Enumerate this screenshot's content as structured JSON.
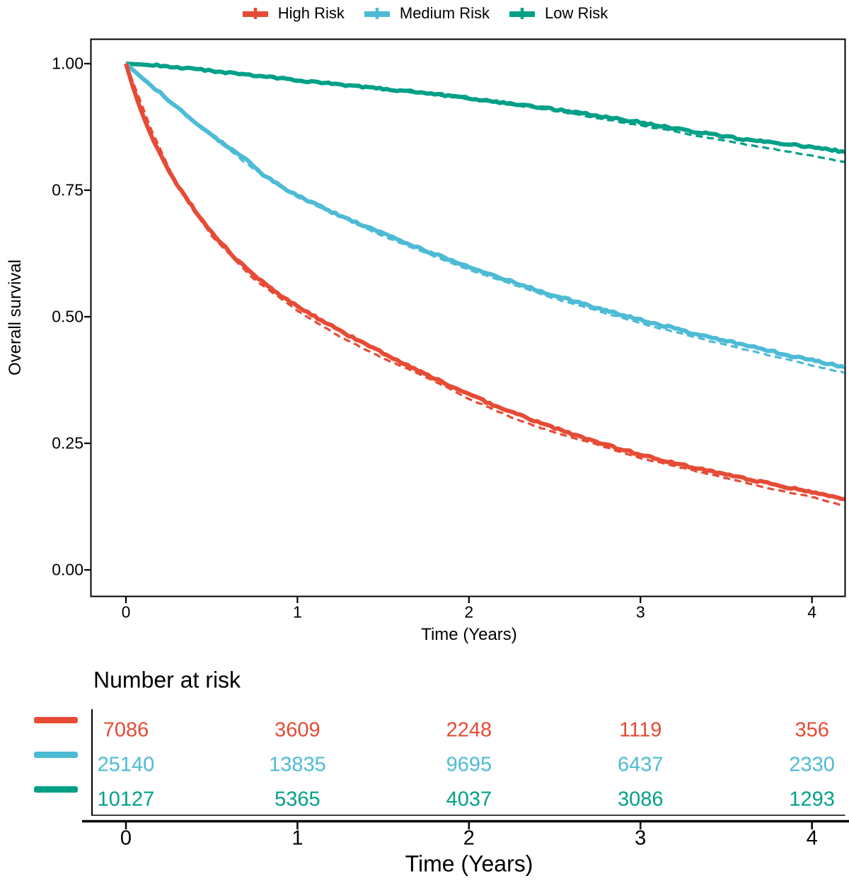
{
  "legend": {
    "position": "top",
    "items": [
      {
        "label": "High Risk",
        "color": "#E64B35"
      },
      {
        "label": "Medium Risk",
        "color": "#4DBBD5"
      },
      {
        "label": "Low Risk",
        "color": "#00A087"
      }
    ]
  },
  "chart_data": {
    "type": "line",
    "subtype": "kaplan-meier-survival",
    "title": "",
    "xlabel": "Time (Years)",
    "ylabel": "Overall survival",
    "xlim": [
      0,
      4.19
    ],
    "ylim": [
      0,
      1.0
    ],
    "grid": false,
    "legend_position": "top",
    "x_ticks": [
      {
        "value": 0,
        "label": "0"
      },
      {
        "value": 1,
        "label": "1"
      },
      {
        "value": 2,
        "label": "2"
      },
      {
        "value": 3,
        "label": "3"
      },
      {
        "value": 4,
        "label": "4"
      }
    ],
    "y_ticks": [
      {
        "value": 1.0,
        "label": "1.00"
      },
      {
        "value": 0.75,
        "label": "0.75"
      },
      {
        "value": 0.5,
        "label": "0.50"
      },
      {
        "value": 0.25,
        "label": "0.25"
      },
      {
        "value": 0.0,
        "label": "0.00"
      }
    ],
    "series": [
      {
        "name": "Low Risk",
        "color": "#00A087",
        "line": "dashed",
        "points": [
          [
            0,
            1.0
          ],
          [
            0.5,
            0.986
          ],
          [
            1.0,
            0.966
          ],
          [
            1.5,
            0.95
          ],
          [
            2.0,
            0.93
          ],
          [
            2.5,
            0.907
          ],
          [
            3.0,
            0.878
          ],
          [
            3.2,
            0.866
          ],
          [
            3.4,
            0.853
          ],
          [
            3.6,
            0.841
          ],
          [
            3.8,
            0.83
          ],
          [
            4.0,
            0.818
          ],
          [
            4.19,
            0.806
          ]
        ]
      },
      {
        "name": "Low Risk",
        "color": "#00A087",
        "line": "solid",
        "points": [
          [
            0,
            1.0
          ],
          [
            0.1,
            0.998
          ],
          [
            0.2,
            0.996
          ],
          [
            0.3,
            0.993
          ],
          [
            0.4,
            0.989
          ],
          [
            0.5,
            0.986
          ],
          [
            0.6,
            0.982
          ],
          [
            0.7,
            0.979
          ],
          [
            0.8,
            0.975
          ],
          [
            0.9,
            0.971
          ],
          [
            1.0,
            0.967
          ],
          [
            1.2,
            0.96
          ],
          [
            1.4,
            0.954
          ],
          [
            1.6,
            0.947
          ],
          [
            1.8,
            0.94
          ],
          [
            2.0,
            0.932
          ],
          [
            2.2,
            0.923
          ],
          [
            2.4,
            0.914
          ],
          [
            2.6,
            0.905
          ],
          [
            2.8,
            0.895
          ],
          [
            3.0,
            0.884
          ],
          [
            3.2,
            0.872
          ],
          [
            3.4,
            0.861
          ],
          [
            3.6,
            0.851
          ],
          [
            3.8,
            0.843
          ],
          [
            4.0,
            0.835
          ],
          [
            4.1,
            0.83
          ],
          [
            4.19,
            0.826
          ]
        ]
      },
      {
        "name": "Medium Risk",
        "color": "#4DBBD5",
        "line": "dashed",
        "points": [
          [
            0,
            1.0
          ],
          [
            0.25,
            0.925
          ],
          [
            0.5,
            0.857
          ],
          [
            0.75,
            0.79
          ],
          [
            1.0,
            0.736
          ],
          [
            1.5,
            0.659
          ],
          [
            2.0,
            0.593
          ],
          [
            2.5,
            0.536
          ],
          [
            3.0,
            0.487
          ],
          [
            3.5,
            0.444
          ],
          [
            4.0,
            0.404
          ],
          [
            4.19,
            0.389
          ]
        ]
      },
      {
        "name": "Medium Risk",
        "color": "#4DBBD5",
        "line": "solid",
        "points": [
          [
            0,
            1.0
          ],
          [
            0.05,
            0.985
          ],
          [
            0.1,
            0.97
          ],
          [
            0.15,
            0.956
          ],
          [
            0.2,
            0.942
          ],
          [
            0.25,
            0.928
          ],
          [
            0.3,
            0.914
          ],
          [
            0.35,
            0.9
          ],
          [
            0.4,
            0.886
          ],
          [
            0.45,
            0.872
          ],
          [
            0.5,
            0.858
          ],
          [
            0.6,
            0.835
          ],
          [
            0.7,
            0.812
          ],
          [
            0.8,
            0.781
          ],
          [
            0.9,
            0.758
          ],
          [
            1.0,
            0.74
          ],
          [
            1.1,
            0.723
          ],
          [
            1.2,
            0.707
          ],
          [
            1.3,
            0.692
          ],
          [
            1.4,
            0.678
          ],
          [
            1.5,
            0.664
          ],
          [
            1.6,
            0.65
          ],
          [
            1.7,
            0.637
          ],
          [
            1.8,
            0.624
          ],
          [
            1.9,
            0.611
          ],
          [
            2.0,
            0.599
          ],
          [
            2.1,
            0.587
          ],
          [
            2.2,
            0.575
          ],
          [
            2.3,
            0.564
          ],
          [
            2.4,
            0.553
          ],
          [
            2.5,
            0.542
          ],
          [
            2.6,
            0.532
          ],
          [
            2.7,
            0.522
          ],
          [
            2.8,
            0.512
          ],
          [
            2.9,
            0.503
          ],
          [
            3.0,
            0.494
          ],
          [
            3.1,
            0.485
          ],
          [
            3.2,
            0.477
          ],
          [
            3.3,
            0.468
          ],
          [
            3.4,
            0.46
          ],
          [
            3.5,
            0.452
          ],
          [
            3.6,
            0.445
          ],
          [
            3.7,
            0.437
          ],
          [
            3.8,
            0.429
          ],
          [
            3.9,
            0.421
          ],
          [
            4.0,
            0.414
          ],
          [
            4.1,
            0.407
          ],
          [
            4.19,
            0.401
          ]
        ]
      },
      {
        "name": "High Risk",
        "color": "#E64B35",
        "line": "dashed",
        "points": [
          [
            0,
            1.0
          ],
          [
            0.15,
            0.868
          ],
          [
            0.3,
            0.757
          ],
          [
            0.5,
            0.66
          ],
          [
            0.75,
            0.573
          ],
          [
            1.0,
            0.512
          ],
          [
            1.25,
            0.46
          ],
          [
            1.5,
            0.418
          ],
          [
            1.75,
            0.381
          ],
          [
            2.0,
            0.338
          ],
          [
            2.25,
            0.301
          ],
          [
            2.5,
            0.271
          ],
          [
            2.75,
            0.247
          ],
          [
            3.0,
            0.221
          ],
          [
            3.25,
            0.201
          ],
          [
            3.5,
            0.181
          ],
          [
            3.75,
            0.161
          ],
          [
            4.0,
            0.144
          ],
          [
            4.19,
            0.126
          ]
        ]
      },
      {
        "name": "High Risk",
        "color": "#E64B35",
        "line": "solid",
        "points": [
          [
            0,
            1.0
          ],
          [
            0.04,
            0.955
          ],
          [
            0.08,
            0.915
          ],
          [
            0.12,
            0.88
          ],
          [
            0.16,
            0.849
          ],
          [
            0.2,
            0.82
          ],
          [
            0.25,
            0.789
          ],
          [
            0.3,
            0.761
          ],
          [
            0.35,
            0.735
          ],
          [
            0.4,
            0.711
          ],
          [
            0.45,
            0.688
          ],
          [
            0.5,
            0.667
          ],
          [
            0.56,
            0.644
          ],
          [
            0.62,
            0.622
          ],
          [
            0.68,
            0.602
          ],
          [
            0.75,
            0.581
          ],
          [
            0.83,
            0.56
          ],
          [
            0.9,
            0.543
          ],
          [
            1.0,
            0.521
          ],
          [
            1.1,
            0.501
          ],
          [
            1.2,
            0.482
          ],
          [
            1.3,
            0.463
          ],
          [
            1.4,
            0.445
          ],
          [
            1.5,
            0.428
          ],
          [
            1.6,
            0.411
          ],
          [
            1.7,
            0.394
          ],
          [
            1.8,
            0.378
          ],
          [
            1.9,
            0.362
          ],
          [
            2.0,
            0.347
          ],
          [
            2.1,
            0.332
          ],
          [
            2.2,
            0.318
          ],
          [
            2.3,
            0.305
          ],
          [
            2.4,
            0.292
          ],
          [
            2.5,
            0.28
          ],
          [
            2.6,
            0.268
          ],
          [
            2.7,
            0.257
          ],
          [
            2.8,
            0.247
          ],
          [
            2.9,
            0.237
          ],
          [
            3.0,
            0.228
          ],
          [
            3.1,
            0.219
          ],
          [
            3.2,
            0.211
          ],
          [
            3.3,
            0.203
          ],
          [
            3.4,
            0.195
          ],
          [
            3.5,
            0.188
          ],
          [
            3.6,
            0.181
          ],
          [
            3.7,
            0.174
          ],
          [
            3.8,
            0.167
          ],
          [
            3.9,
            0.16
          ],
          [
            4.0,
            0.153
          ],
          [
            4.1,
            0.146
          ],
          [
            4.19,
            0.14
          ]
        ]
      }
    ]
  },
  "risk_table": {
    "title": "Number at risk",
    "xlabel": "Time (Years)",
    "time_points": [
      {
        "value": 0,
        "label": "0"
      },
      {
        "value": 1,
        "label": "1"
      },
      {
        "value": 2,
        "label": "2"
      },
      {
        "value": 3,
        "label": "3"
      },
      {
        "value": 4,
        "label": "4"
      }
    ],
    "rows": [
      {
        "name": "High Risk",
        "color": "#E64B35",
        "values": [
          "7086",
          "3609",
          "2248",
          "1119",
          "356"
        ]
      },
      {
        "name": "Medium Risk",
        "color": "#4DBBD5",
        "values": [
          "25140",
          "13835",
          "9695",
          "6437",
          "2330"
        ]
      },
      {
        "name": "Low Risk",
        "color": "#00A087",
        "values": [
          "10127",
          "5365",
          "4037",
          "3086",
          "1293"
        ]
      }
    ]
  }
}
